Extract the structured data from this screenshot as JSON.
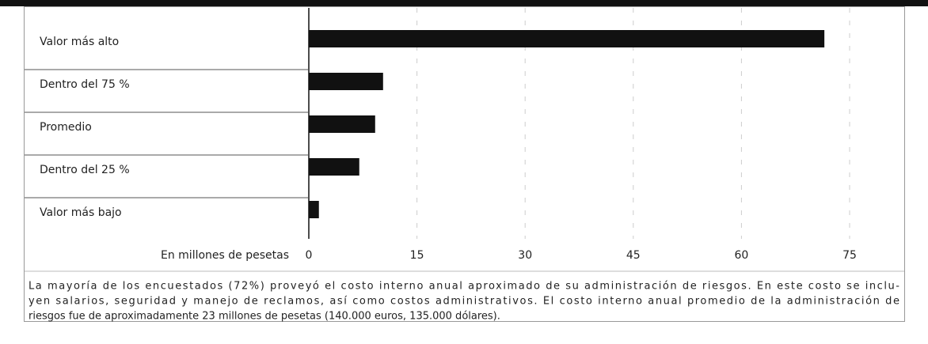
{
  "chart_data": {
    "type": "bar",
    "orientation": "horizontal",
    "categories": [
      "Valor más alto",
      "Dentro del 75 %",
      "Promedio",
      "Dentro del 25 %",
      "Valor más bajo"
    ],
    "values": [
      71.5,
      10.3,
      9.2,
      7.0,
      1.4
    ],
    "color": "#111111",
    "xlim": [
      0,
      75
    ],
    "xticks": [
      0,
      15,
      30,
      45,
      60,
      75
    ],
    "grid": true,
    "xlabel": "En millones de pesetas",
    "note_lines": [
      "La mayoría de los encuestados (72%) proveyó el costo interno anual aproximado de su administración de riesgos. En este costo se inclu-",
      "yen salarios, seguridad y manejo de reclamos, así como costos administrativos. El costo interno anual promedio de la administración de",
      "riesgos fue de aproximadamente 23 millones de pesetas (140.000 euros, 135.000 dólares)."
    ]
  }
}
